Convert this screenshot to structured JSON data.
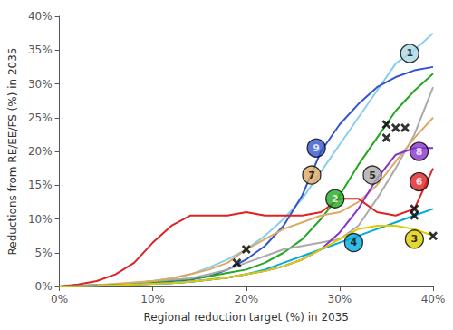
{
  "chart_data": {
    "type": "line",
    "xlabel": "Regional reduction target (%) in 2035",
    "ylabel": "Reductions from RE/EE/FS (%) in 2035",
    "xlim": [
      0,
      40
    ],
    "ylim": [
      0,
      40
    ],
    "xticks": [
      {
        "value": 0,
        "label": "0%"
      },
      {
        "value": 10,
        "label": "10%"
      },
      {
        "value": 20,
        "label": "20%"
      },
      {
        "value": 30,
        "label": "30%"
      },
      {
        "value": 40,
        "label": "40%"
      }
    ],
    "yticks": [
      {
        "value": 0,
        "label": "0%"
      },
      {
        "value": 5,
        "label": "5%"
      },
      {
        "value": 10,
        "label": "10%"
      },
      {
        "value": 15,
        "label": "15%"
      },
      {
        "value": 20,
        "label": "20%"
      },
      {
        "value": 25,
        "label": "25%"
      },
      {
        "value": 30,
        "label": "30%"
      },
      {
        "value": 35,
        "label": "35%"
      },
      {
        "value": 40,
        "label": "40%"
      }
    ],
    "grid": false,
    "x": [
      0,
      2,
      4,
      6,
      8,
      10,
      12,
      14,
      16,
      18,
      20,
      22,
      24,
      26,
      28,
      30,
      32,
      34,
      36,
      38,
      40
    ],
    "series": [
      {
        "type": "line",
        "color": "#87CEEB",
        "values": [
          0,
          0.1,
          0.2,
          0.3,
          0.5,
          0.8,
          1.2,
          1.8,
          2.8,
          4.0,
          5.5,
          7.5,
          10,
          13,
          17,
          21,
          25,
          29,
          33,
          35,
          37.5
        ]
      },
      {
        "type": "line",
        "color": "#3355CC",
        "values": [
          0,
          0.1,
          0.2,
          0.3,
          0.4,
          0.6,
          0.8,
          1.0,
          1.5,
          2.5,
          4.0,
          6.0,
          9.0,
          13.5,
          20.0,
          24.0,
          27.0,
          29.5,
          31.0,
          32.0,
          32.5
        ]
      },
      {
        "type": "line",
        "color": "#22A822",
        "values": [
          0,
          0.1,
          0.2,
          0.3,
          0.5,
          0.7,
          0.9,
          1.1,
          1.5,
          2.0,
          2.5,
          3.5,
          5.0,
          7.0,
          10.0,
          13.5,
          18.0,
          22.0,
          26.0,
          29.0,
          31.5
        ]
      },
      {
        "type": "line",
        "color": "#AAAAAA",
        "values": [
          0,
          0.1,
          0.2,
          0.3,
          0.5,
          0.8,
          1.0,
          1.2,
          1.8,
          2.5,
          3.5,
          4.5,
          5.5,
          6.0,
          6.5,
          7.0,
          9.0,
          13.0,
          17.5,
          22.5,
          29.5
        ]
      },
      {
        "type": "line",
        "color": "#DDAA66",
        "values": [
          0,
          0.1,
          0.2,
          0.4,
          0.6,
          0.8,
          1.2,
          1.8,
          2.5,
          3.5,
          5.5,
          7.0,
          8.5,
          9.5,
          10.5,
          11.0,
          12.5,
          15.0,
          18.5,
          22.0,
          25.0
        ]
      },
      {
        "type": "line",
        "color": "#8833CC",
        "values": [
          0,
          0.05,
          0.1,
          0.2,
          0.3,
          0.4,
          0.5,
          0.7,
          1.0,
          1.3,
          1.8,
          2.3,
          3.0,
          4.0,
          5.5,
          8.0,
          11.5,
          16.0,
          19.5,
          20.5,
          20.5
        ]
      },
      {
        "type": "line",
        "color": "#DD2222",
        "values": [
          0,
          0.3,
          0.8,
          1.8,
          3.5,
          6.5,
          9.0,
          10.5,
          10.5,
          10.5,
          11.0,
          10.5,
          10.5,
          10.5,
          11.0,
          13.0,
          13.0,
          11.0,
          10.5,
          11.5,
          17.5
        ]
      },
      {
        "type": "line",
        "color": "#00AADD",
        "values": [
          0,
          0.05,
          0.1,
          0.2,
          0.3,
          0.4,
          0.5,
          0.7,
          1.0,
          1.3,
          1.8,
          2.5,
          3.5,
          4.5,
          5.5,
          6.5,
          7.5,
          8.5,
          9.5,
          10.5,
          11.5
        ]
      },
      {
        "type": "line",
        "color": "#DDCC00",
        "values": [
          0,
          0.05,
          0.1,
          0.2,
          0.3,
          0.4,
          0.5,
          0.7,
          1.0,
          1.3,
          1.8,
          2.3,
          3.0,
          4.0,
          5.5,
          7.0,
          8.5,
          9.0,
          9.0,
          8.5,
          7.5
        ]
      },
      {
        "type": "scatter",
        "marker": "x",
        "color": "#000000",
        "x": [
          20,
          19,
          35,
          36,
          35,
          37,
          38,
          38,
          40
        ],
        "values": [
          5.5,
          3.5,
          22.0,
          23.5,
          24.0,
          23.5,
          11.5,
          10.5,
          7.5
        ]
      }
    ],
    "annotations": [
      {
        "text": "1",
        "x": 37.5,
        "y": 34.5,
        "color": "#ADD8E6",
        "text_color": "#000000"
      },
      {
        "text": "9",
        "x": 27.5,
        "y": 20.5,
        "color": "#3355CC",
        "text_color": "#ffffff"
      },
      {
        "text": "2",
        "x": 29.5,
        "y": 13.0,
        "color": "#22A822",
        "text_color": "#ffffff"
      },
      {
        "text": "5",
        "x": 33.5,
        "y": 16.5,
        "color": "#AAAAAA",
        "text_color": "#000000"
      },
      {
        "text": "7",
        "x": 27.0,
        "y": 16.5,
        "color": "#DDAA66",
        "text_color": "#000000"
      },
      {
        "text": "8",
        "x": 38.5,
        "y": 20.0,
        "color": "#8833CC",
        "text_color": "#ffffff"
      },
      {
        "text": "6",
        "x": 38.5,
        "y": 15.5,
        "color": "#DD2222",
        "text_color": "#ffffff"
      },
      {
        "text": "4",
        "x": 31.5,
        "y": 6.5,
        "color": "#00AADD",
        "text_color": "#000000"
      },
      {
        "text": "3",
        "x": 38.0,
        "y": 7.0,
        "color": "#DDCC00",
        "text_color": "#000000"
      }
    ]
  }
}
